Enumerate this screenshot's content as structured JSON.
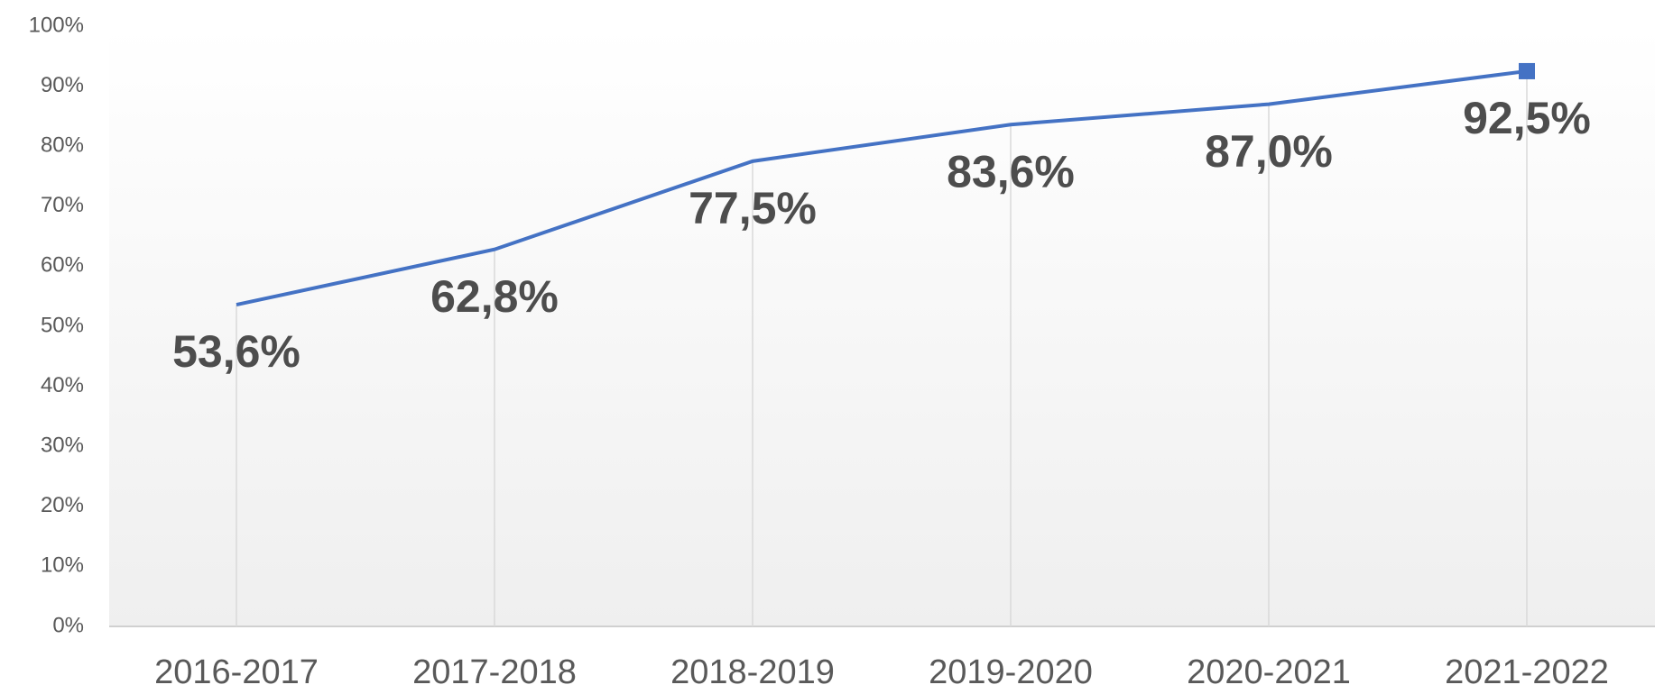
{
  "chart_data": {
    "type": "line",
    "categories": [
      "2016-2017",
      "2017-2018",
      "2018-2019",
      "2019-2020",
      "2020-2021",
      "2021-2022"
    ],
    "series": [
      {
        "color": "#4472c4",
        "values": [
          53.6,
          62.8,
          77.5,
          83.6,
          87.0,
          92.5
        ],
        "value_labels": [
          "53,6%",
          "62,8%",
          "77,5%",
          "83,6%",
          "87,0%",
          "92,5%"
        ]
      }
    ],
    "ylim": [
      0,
      100
    ],
    "yticks": [
      {
        "value": 0,
        "label": "0%"
      },
      {
        "value": 10,
        "label": "10%"
      },
      {
        "value": 20,
        "label": "20%"
      },
      {
        "value": 30,
        "label": "30%"
      },
      {
        "value": 40,
        "label": "40%"
      },
      {
        "value": 50,
        "label": "50%"
      },
      {
        "value": 60,
        "label": "60%"
      },
      {
        "value": 70,
        "label": "70%"
      },
      {
        "value": 80,
        "label": "80%"
      },
      {
        "value": 90,
        "label": "90%"
      },
      {
        "value": 100,
        "label": "100%"
      }
    ],
    "drop_lines": true
  }
}
